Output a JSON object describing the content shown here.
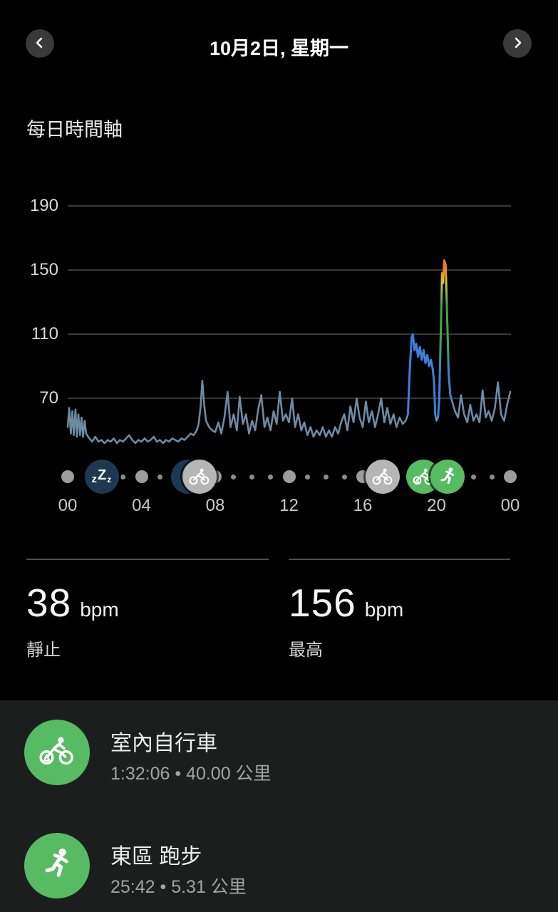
{
  "header": {
    "title": "10月2日, 星期一"
  },
  "section_title": "每日時間軸",
  "colors": {
    "background": "#000000",
    "card_bg": "#1c1e1d",
    "accent_green": "#57bb63",
    "hr_base": "#6e8ba3",
    "hr_activity_blue": "#3b80d9",
    "zone_green": "#43a448",
    "zone_yellow": "#cfc83a",
    "zone_orange": "#f07c20",
    "grid": "#4e4e4e",
    "dot_gray": "#9c9c9c",
    "sleep_navy": "#1d3850",
    "event_circle_gray": "#b5b5b5"
  },
  "chart_data": {
    "type": "line",
    "title": "每日時間軸",
    "ylabel": "bpm",
    "ylim": [
      40,
      200
    ],
    "yticks": [
      190,
      150,
      110,
      70
    ],
    "xticks": [
      "00",
      "04",
      "08",
      "12",
      "16",
      "20",
      "00"
    ],
    "xtick_hours": [
      0,
      4,
      8,
      12,
      16,
      20,
      24
    ],
    "grid": true,
    "series": [
      {
        "name": "heart_rate_bpm",
        "points": [
          [
            0,
            52
          ],
          [
            0.08,
            64
          ],
          [
            0.17,
            48
          ],
          [
            0.25,
            62
          ],
          [
            0.33,
            47
          ],
          [
            0.42,
            63
          ],
          [
            0.5,
            46
          ],
          [
            0.58,
            60
          ],
          [
            0.67,
            47
          ],
          [
            0.75,
            58
          ],
          [
            0.83,
            46
          ],
          [
            0.92,
            56
          ],
          [
            1,
            48
          ],
          [
            1.17,
            45
          ],
          [
            1.33,
            43
          ],
          [
            1.5,
            46
          ],
          [
            1.67,
            43
          ],
          [
            1.83,
            44
          ],
          [
            2,
            42
          ],
          [
            2.17,
            44
          ],
          [
            2.33,
            43
          ],
          [
            2.5,
            45
          ],
          [
            2.67,
            42
          ],
          [
            2.83,
            44
          ],
          [
            3,
            43
          ],
          [
            3.17,
            45
          ],
          [
            3.33,
            47
          ],
          [
            3.5,
            44
          ],
          [
            3.67,
            42
          ],
          [
            3.83,
            44
          ],
          [
            4,
            43
          ],
          [
            4.17,
            45
          ],
          [
            4.33,
            43
          ],
          [
            4.5,
            44
          ],
          [
            4.67,
            46
          ],
          [
            4.83,
            43
          ],
          [
            5,
            44
          ],
          [
            5.17,
            42
          ],
          [
            5.33,
            44
          ],
          [
            5.5,
            43
          ],
          [
            5.67,
            45
          ],
          [
            5.83,
            44
          ],
          [
            6,
            43
          ],
          [
            6.17,
            45
          ],
          [
            6.33,
            44
          ],
          [
            6.5,
            46
          ],
          [
            6.67,
            48
          ],
          [
            6.83,
            47
          ],
          [
            7,
            50
          ],
          [
            7.1,
            54
          ],
          [
            7.2,
            64
          ],
          [
            7.3,
            81
          ],
          [
            7.4,
            66
          ],
          [
            7.5,
            56
          ],
          [
            7.67,
            52
          ],
          [
            7.83,
            50
          ],
          [
            8,
            49
          ],
          [
            8.17,
            55
          ],
          [
            8.33,
            48
          ],
          [
            8.5,
            58
          ],
          [
            8.67,
            74
          ],
          [
            8.83,
            52
          ],
          [
            9,
            60
          ],
          [
            9.17,
            50
          ],
          [
            9.33,
            71
          ],
          [
            9.5,
            54
          ],
          [
            9.67,
            60
          ],
          [
            9.83,
            48
          ],
          [
            10,
            56
          ],
          [
            10.17,
            50
          ],
          [
            10.33,
            63
          ],
          [
            10.5,
            72
          ],
          [
            10.67,
            52
          ],
          [
            10.83,
            58
          ],
          [
            11,
            50
          ],
          [
            11.17,
            62
          ],
          [
            11.33,
            54
          ],
          [
            11.5,
            74
          ],
          [
            11.67,
            56
          ],
          [
            11.83,
            60
          ],
          [
            12,
            55
          ],
          [
            12.17,
            70
          ],
          [
            12.33,
            52
          ],
          [
            12.5,
            60
          ],
          [
            12.67,
            50
          ],
          [
            12.83,
            55
          ],
          [
            13,
            47
          ],
          [
            13.17,
            52
          ],
          [
            13.33,
            46
          ],
          [
            13.5,
            50
          ],
          [
            13.67,
            47
          ],
          [
            13.83,
            52
          ],
          [
            14,
            46
          ],
          [
            14.17,
            50
          ],
          [
            14.33,
            46
          ],
          [
            14.5,
            52
          ],
          [
            14.67,
            48
          ],
          [
            14.83,
            55
          ],
          [
            15,
            60
          ],
          [
            15.17,
            50
          ],
          [
            15.33,
            65
          ],
          [
            15.5,
            55
          ],
          [
            15.67,
            70
          ],
          [
            15.83,
            58
          ],
          [
            16,
            52
          ],
          [
            16.17,
            68
          ],
          [
            16.33,
            55
          ],
          [
            16.5,
            62
          ],
          [
            16.67,
            52
          ],
          [
            16.83,
            60
          ],
          [
            17,
            70
          ],
          [
            17.17,
            55
          ],
          [
            17.33,
            64
          ],
          [
            17.5,
            54
          ],
          [
            17.67,
            60
          ],
          [
            17.83,
            52
          ],
          [
            18,
            58
          ],
          [
            18.17,
            54
          ],
          [
            18.33,
            56
          ],
          [
            18.45,
            60
          ],
          [
            18.55,
            88
          ],
          [
            18.65,
            108
          ],
          [
            18.72,
            110
          ],
          [
            18.8,
            100
          ],
          [
            18.9,
            104
          ],
          [
            19,
            96
          ],
          [
            19.1,
            102
          ],
          [
            19.2,
            94
          ],
          [
            19.3,
            100
          ],
          [
            19.4,
            92
          ],
          [
            19.5,
            97
          ],
          [
            19.6,
            90
          ],
          [
            19.7,
            94
          ],
          [
            19.8,
            88
          ],
          [
            19.87,
            80
          ],
          [
            19.93,
            60
          ],
          [
            20,
            56
          ],
          [
            20.08,
            58
          ],
          [
            20.15,
            70
          ],
          [
            20.22,
            105
          ],
          [
            20.3,
            148
          ],
          [
            20.36,
            142
          ],
          [
            20.42,
            156
          ],
          [
            20.5,
            153
          ],
          [
            20.58,
            120
          ],
          [
            20.66,
            85
          ],
          [
            20.75,
            72
          ],
          [
            20.85,
            68
          ],
          [
            21,
            62
          ],
          [
            21.17,
            58
          ],
          [
            21.33,
            72
          ],
          [
            21.5,
            60
          ],
          [
            21.67,
            55
          ],
          [
            21.83,
            66
          ],
          [
            22,
            56
          ],
          [
            22.17,
            60
          ],
          [
            22.33,
            55
          ],
          [
            22.5,
            75
          ],
          [
            22.67,
            58
          ],
          [
            22.83,
            62
          ],
          [
            23,
            56
          ],
          [
            23.17,
            64
          ],
          [
            23.33,
            80
          ],
          [
            23.5,
            60
          ],
          [
            23.67,
            56
          ],
          [
            23.83,
            66
          ],
          [
            24,
            74
          ]
        ]
      }
    ],
    "activity_segments": [
      {
        "name": "indoor-cycling",
        "start_hour": 18.45,
        "end_hour": 19.93,
        "style": "activity-blue"
      },
      {
        "name": "running",
        "start_hour": 20.08,
        "end_hour": 20.9,
        "style": "zone-gradient"
      }
    ],
    "timeline_markers": {
      "large_dot_hours": [
        0,
        4,
        8,
        12,
        16,
        20,
        24
      ],
      "small_dot_hours": [
        3,
        5,
        9,
        10,
        11,
        13,
        14,
        15,
        22,
        23
      ],
      "events": [
        {
          "name": "sleep",
          "hour": 1.85,
          "icon": "zzz",
          "color": "navy"
        },
        {
          "name": "sleep-end",
          "hour": 6.55,
          "icon": "none",
          "color": "navy"
        },
        {
          "name": "cycling-morning",
          "hour": 7.15,
          "icon": "bike",
          "color": "gray"
        },
        {
          "name": "cycling-afternoon",
          "hour": 17.1,
          "icon": "bike",
          "color": "gray"
        },
        {
          "name": "indoor-cycling",
          "hour": 19.3,
          "icon": "indoor-bike",
          "color": "green"
        },
        {
          "name": "running",
          "hour": 20.6,
          "icon": "runner",
          "color": "green"
        }
      ]
    }
  },
  "stats": [
    {
      "value": "38",
      "unit": "bpm",
      "label": "靜止"
    },
    {
      "value": "156",
      "unit": "bpm",
      "label": "最高"
    }
  ],
  "activities": [
    {
      "title": "室內自行車",
      "details": "1:32:06 • 40.00 公里",
      "icon": "indoor-bike"
    },
    {
      "title": "東區 跑步",
      "details": "25:42 • 5.31 公里",
      "icon": "runner"
    }
  ]
}
